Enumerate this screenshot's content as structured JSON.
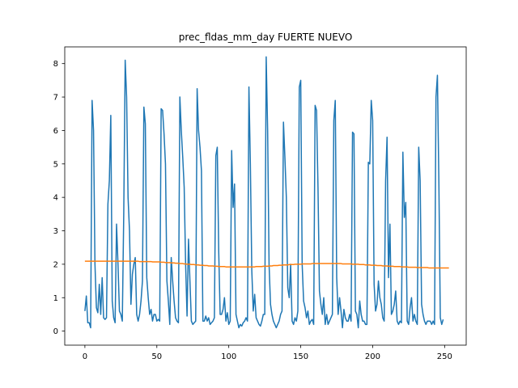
{
  "chart_data": {
    "type": "line",
    "title": "prec_fldas_mm_day FUERTE NUEVO",
    "xlabel": "",
    "ylabel": "",
    "xlim": [
      -14,
      265
    ],
    "ylim": [
      -0.42,
      8.5
    ],
    "xticks": [
      0,
      50,
      100,
      150,
      200,
      250
    ],
    "yticks": [
      0,
      1,
      2,
      3,
      4,
      5,
      6,
      7,
      8
    ],
    "grid": false,
    "colors": [
      "#1f77b4",
      "#ff7f0e"
    ],
    "series": [
      {
        "values": [
          0.6,
          1.05,
          0.25,
          0.25,
          0.1,
          6.9,
          6.0,
          2.0,
          0.7,
          0.55,
          1.4,
          0.5,
          1.6,
          0.4,
          0.35,
          0.4,
          3.8,
          4.5,
          6.45,
          0.9,
          0.4,
          0.25,
          3.2,
          2.0,
          0.6,
          0.5,
          0.3,
          3.5,
          8.1,
          7.0,
          4.0,
          3.0,
          0.8,
          1.7,
          2.0,
          2.2,
          0.5,
          0.3,
          0.5,
          0.9,
          1.5,
          6.7,
          6.2,
          1.6,
          1.0,
          0.5,
          0.65,
          0.3,
          0.5,
          0.5,
          0.3,
          0.35,
          0.3,
          6.65,
          6.6,
          5.9,
          5.0,
          1.5,
          0.9,
          0.2,
          2.2,
          1.5,
          0.9,
          0.4,
          0.3,
          0.25,
          7.0,
          6.0,
          5.2,
          4.3,
          2.0,
          0.45,
          2.75,
          1.5,
          0.3,
          0.2,
          0.25,
          0.3,
          7.25,
          6.0,
          5.5,
          4.8,
          0.3,
          0.3,
          0.45,
          0.3,
          0.4,
          0.2,
          0.25,
          0.3,
          0.4,
          5.25,
          5.5,
          2.4,
          0.5,
          0.5,
          0.65,
          1.0,
          0.3,
          0.55,
          0.2,
          0.3,
          5.4,
          3.7,
          4.4,
          0.5,
          0.3,
          0.1,
          0.2,
          0.15,
          0.25,
          0.3,
          0.4,
          0.3,
          7.3,
          5.0,
          1.8,
          0.6,
          1.1,
          0.4,
          0.3,
          0.2,
          0.15,
          0.3,
          0.5,
          0.5,
          8.2,
          6.0,
          2.0,
          0.8,
          0.5,
          0.3,
          0.2,
          0.1,
          0.2,
          0.3,
          0.5,
          0.6,
          6.25,
          5.2,
          4.0,
          1.3,
          1.0,
          2.0,
          0.3,
          0.2,
          0.4,
          0.3,
          0.6,
          7.3,
          7.5,
          2.0,
          0.9,
          0.7,
          0.4,
          0.6,
          0.2,
          0.3,
          0.35,
          0.2,
          6.75,
          6.6,
          4.3,
          1.2,
          0.8,
          0.5,
          1.0,
          0.2,
          0.5,
          0.2,
          0.3,
          0.4,
          0.5,
          6.3,
          6.9,
          1.6,
          0.5,
          1.0,
          0.6,
          0.1,
          0.65,
          0.4,
          0.3,
          0.3,
          0.5,
          0.3,
          5.95,
          5.9,
          0.6,
          0.5,
          0.1,
          0.9,
          0.5,
          0.3,
          0.3,
          0.2,
          0.2,
          5.05,
          5.0,
          6.9,
          6.3,
          1.4,
          0.6,
          0.8,
          1.5,
          1.0,
          0.8,
          0.4,
          0.3,
          4.5,
          5.8,
          1.6,
          3.2,
          0.5,
          0.6,
          0.8,
          1.2,
          0.3,
          0.2,
          0.3,
          0.25,
          5.35,
          3.4,
          3.85,
          0.3,
          0.2,
          0.7,
          1.0,
          0.3,
          0.5,
          0.3,
          0.2,
          5.5,
          4.5,
          0.8,
          0.5,
          0.3,
          0.2,
          0.3,
          0.3,
          0.3,
          0.2,
          0.3,
          0.2,
          7.0,
          7.65,
          4.5,
          0.4,
          0.2,
          0.35
        ]
      },
      {
        "values": [
          2.09,
          2.09,
          2.09,
          2.09,
          2.09,
          2.09,
          2.09,
          2.09,
          2.09,
          2.09,
          2.09,
          2.09,
          2.09,
          2.09,
          2.09,
          2.09,
          2.09,
          2.09,
          2.09,
          2.09,
          2.09,
          2.09,
          2.09,
          2.09,
          2.09,
          2.09,
          2.09,
          2.09,
          2.09,
          2.09,
          2.09,
          2.09,
          2.09,
          2.09,
          2.09,
          2.09,
          2.09,
          2.09,
          2.08,
          2.08,
          2.08,
          2.08,
          2.08,
          2.08,
          2.08,
          2.08,
          2.08,
          2.07,
          2.07,
          2.07,
          2.07,
          2.07,
          2.07,
          2.06,
          2.06,
          2.06,
          2.05,
          2.05,
          2.05,
          2.05,
          2.04,
          2.04,
          2.04,
          2.03,
          2.03,
          2.03,
          2.02,
          2.02,
          2.02,
          2.01,
          2.01,
          2.0,
          2.0,
          2.0,
          1.99,
          1.99,
          1.99,
          1.98,
          1.98,
          1.98,
          1.97,
          1.97,
          1.97,
          1.96,
          1.96,
          1.96,
          1.95,
          1.95,
          1.95,
          1.95,
          1.94,
          1.94,
          1.94,
          1.93,
          1.93,
          1.93,
          1.93,
          1.93,
          1.92,
          1.92,
          1.92,
          1.92,
          1.92,
          1.92,
          1.92,
          1.92,
          1.92,
          1.92,
          1.92,
          1.92,
          1.92,
          1.92,
          1.92,
          1.92,
          1.92,
          1.92,
          1.92,
          1.92,
          1.92,
          1.93,
          1.93,
          1.93,
          1.93,
          1.93,
          1.94,
          1.94,
          1.94,
          1.94,
          1.95,
          1.95,
          1.95,
          1.96,
          1.96,
          1.96,
          1.96,
          1.97,
          1.97,
          1.97,
          1.98,
          1.98,
          1.98,
          1.98,
          1.99,
          1.99,
          1.99,
          1.99,
          2.0,
          2.0,
          2.0,
          2.0,
          2.0,
          2.01,
          2.01,
          2.01,
          2.01,
          2.01,
          2.01,
          2.01,
          2.02,
          2.02,
          2.02,
          2.02,
          2.02,
          2.02,
          2.02,
          2.02,
          2.02,
          2.02,
          2.02,
          2.02,
          2.02,
          2.02,
          2.02,
          2.02,
          2.02,
          2.02,
          2.02,
          2.02,
          2.02,
          2.01,
          2.01,
          2.01,
          2.01,
          2.01,
          2.01,
          2.01,
          2.0,
          2.0,
          2.0,
          2.0,
          2.0,
          1.99,
          1.99,
          1.99,
          1.99,
          1.98,
          1.98,
          1.98,
          1.98,
          1.97,
          1.97,
          1.97,
          1.97,
          1.96,
          1.96,
          1.96,
          1.96,
          1.95,
          1.95,
          1.95,
          1.95,
          1.94,
          1.94,
          1.94,
          1.94,
          1.93,
          1.93,
          1.93,
          1.93,
          1.93,
          1.92,
          1.92,
          1.92,
          1.92,
          1.92,
          1.91,
          1.91,
          1.91,
          1.91,
          1.91,
          1.91,
          1.9,
          1.9,
          1.9,
          1.9,
          1.9,
          1.9,
          1.9,
          1.9,
          1.89,
          1.89,
          1.89,
          1.89,
          1.89,
          1.89,
          1.89,
          1.89,
          1.89,
          1.89,
          1.89,
          1.89,
          1.89,
          1.89,
          1.89
        ]
      }
    ]
  }
}
